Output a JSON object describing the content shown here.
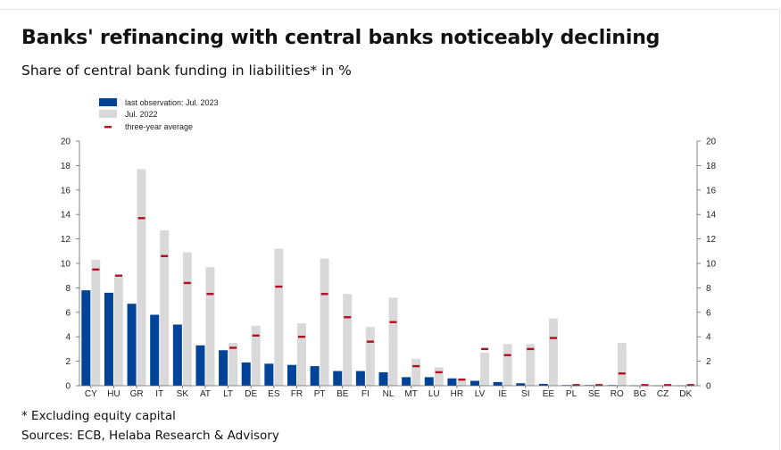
{
  "chart_data": {
    "type": "bar",
    "title": "Banks' refinancing with central banks noticeably declining",
    "subtitle": "Share of central bank funding in liabilities* in %",
    "categories": [
      "CY",
      "HU",
      "GR",
      "IT",
      "SK",
      "AT",
      "LT",
      "DE",
      "ES",
      "FR",
      "PT",
      "BE",
      "FI",
      "NL",
      "MT",
      "LU",
      "HR",
      "LV",
      "IE",
      "SI",
      "EE",
      "PL",
      "SE",
      "RO",
      "BG",
      "CZ",
      "DK"
    ],
    "series": [
      {
        "name": "last observation: Jul. 2023",
        "color": "#00449a",
        "values": [
          7.8,
          7.6,
          6.7,
          5.8,
          5.0,
          3.3,
          2.9,
          1.9,
          1.8,
          1.7,
          1.6,
          1.2,
          1.2,
          1.1,
          0.7,
          0.7,
          0.6,
          0.4,
          0.3,
          0.2,
          0.15,
          0.05,
          0.05,
          0.05,
          0.02,
          0.02,
          0.02
        ]
      },
      {
        "name": "Jul. 2022",
        "color": "#d9d9d9",
        "values": [
          10.3,
          9.0,
          17.7,
          12.7,
          10.9,
          9.7,
          3.5,
          4.9,
          11.2,
          5.1,
          10.4,
          7.5,
          4.8,
          7.2,
          2.2,
          1.5,
          0.6,
          2.7,
          3.4,
          3.4,
          5.5,
          0.1,
          0.05,
          3.5,
          0.05,
          0.05,
          0.05
        ]
      },
      {
        "name": "three-year average",
        "color": "#b01020",
        "values": [
          9.5,
          9.0,
          13.7,
          10.6,
          8.4,
          7.5,
          3.1,
          4.1,
          8.1,
          4.0,
          7.5,
          5.6,
          3.6,
          5.2,
          1.6,
          1.1,
          0.5,
          3.0,
          2.5,
          3.0,
          3.9,
          0.05,
          0.05,
          1.0,
          0.05,
          0.05,
          0.05
        ]
      }
    ],
    "ylim": [
      0,
      20
    ],
    "yticks": [
      0,
      2,
      4,
      6,
      8,
      10,
      12,
      14,
      16,
      18,
      20
    ],
    "xlabel": "",
    "ylabel": "",
    "legend_position": "top-left",
    "grid": false
  },
  "footnote": "* Excluding equity capital",
  "source": "Sources: ECB, Helaba Research & Advisory"
}
